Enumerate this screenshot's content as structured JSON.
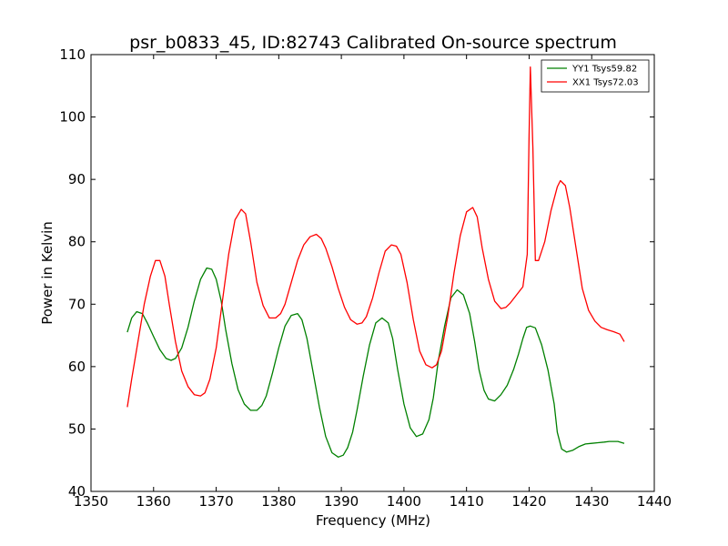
{
  "chart_data": {
    "type": "line",
    "title": "psr_b0833_45, ID:82743 Calibrated On-source spectrum",
    "xlabel": "Frequency (MHz)",
    "ylabel": "Power in Kelvin",
    "xlim": [
      1350,
      1440
    ],
    "ylim": [
      40,
      110
    ],
    "xticks": [
      1350,
      1360,
      1370,
      1380,
      1390,
      1400,
      1410,
      1420,
      1430,
      1440
    ],
    "yticks": [
      40,
      50,
      60,
      70,
      80,
      90,
      100,
      110
    ],
    "grid": false,
    "legend_position": "top-right",
    "series": [
      {
        "name": "YY1 Tsys59.82",
        "color": "#008000",
        "x": [
          1355.8,
          1356.5,
          1357.3,
          1358.2,
          1359.0,
          1360.0,
          1361.0,
          1362.0,
          1362.8,
          1363.5,
          1364.5,
          1365.5,
          1366.5,
          1367.5,
          1368.5,
          1369.3,
          1370.0,
          1370.8,
          1371.5,
          1372.5,
          1373.5,
          1374.5,
          1375.5,
          1376.5,
          1377.3,
          1378.0,
          1379.0,
          1380.0,
          1381.0,
          1382.0,
          1383.0,
          1383.7,
          1384.5,
          1385.5,
          1386.5,
          1387.5,
          1388.5,
          1389.5,
          1390.3,
          1391.0,
          1391.8,
          1392.5,
          1393.5,
          1394.5,
          1395.5,
          1396.5,
          1397.5,
          1398.2,
          1399.0,
          1400.0,
          1401.0,
          1402.0,
          1403.0,
          1404.0,
          1404.7,
          1405.5,
          1406.5,
          1407.5,
          1408.5,
          1409.5,
          1410.5,
          1411.3,
          1412.0,
          1412.8,
          1413.5,
          1414.5,
          1415.5,
          1416.5,
          1417.5,
          1418.3,
          1419.0,
          1419.6,
          1420.2,
          1421.0,
          1422.0,
          1423.0,
          1424.0,
          1424.5,
          1425.2,
          1426.0,
          1427.0,
          1428.0,
          1429.0,
          1430.0,
          1431.0,
          1432.0,
          1432.8,
          1433.5,
          1434.2,
          1435.2
        ],
        "y": [
          65.5,
          67.8,
          68.8,
          68.5,
          67.0,
          64.8,
          62.7,
          61.3,
          61.0,
          61.3,
          63.0,
          66.3,
          70.5,
          74.0,
          75.8,
          75.6,
          74.0,
          70.5,
          66.0,
          60.5,
          56.3,
          54.0,
          53.0,
          53.0,
          53.8,
          55.3,
          59.0,
          63.0,
          66.5,
          68.2,
          68.5,
          67.5,
          64.5,
          59.0,
          53.5,
          48.8,
          46.2,
          45.5,
          45.8,
          47.0,
          49.5,
          53.0,
          58.5,
          63.5,
          67.0,
          67.8,
          67.0,
          64.5,
          59.5,
          54.0,
          50.2,
          48.8,
          49.2,
          51.5,
          55.0,
          61.0,
          66.5,
          71.0,
          72.3,
          71.5,
          68.5,
          64.0,
          59.5,
          56.2,
          54.8,
          54.5,
          55.5,
          57.0,
          59.5,
          62.0,
          64.5,
          66.3,
          66.5,
          66.2,
          63.5,
          59.5,
          54.0,
          49.5,
          46.8,
          46.3,
          46.6,
          47.2,
          47.6,
          47.7,
          47.8,
          47.9,
          48.0,
          48.0,
          48.0,
          47.7
        ]
      },
      {
        "name": "XX1 Tsys72.03",
        "color": "#ff0000",
        "x": [
          1355.8,
          1356.5,
          1357.5,
          1358.5,
          1359.5,
          1360.3,
          1361.0,
          1361.8,
          1362.5,
          1363.5,
          1364.5,
          1365.5,
          1366.5,
          1367.5,
          1368.2,
          1369.0,
          1370.0,
          1371.0,
          1372.0,
          1373.0,
          1374.0,
          1374.7,
          1375.5,
          1376.5,
          1377.5,
          1378.5,
          1379.5,
          1380.3,
          1381.0,
          1382.0,
          1383.0,
          1384.0,
          1385.0,
          1386.0,
          1386.8,
          1387.5,
          1388.5,
          1389.5,
          1390.5,
          1391.5,
          1392.5,
          1393.3,
          1394.0,
          1395.0,
          1396.0,
          1397.0,
          1398.0,
          1398.8,
          1399.5,
          1400.5,
          1401.5,
          1402.5,
          1403.5,
          1404.5,
          1405.2,
          1406.0,
          1407.0,
          1408.0,
          1409.0,
          1410.0,
          1411.0,
          1411.7,
          1412.5,
          1413.5,
          1414.5,
          1415.5,
          1416.3,
          1417.0,
          1418.0,
          1419.0,
          1419.7,
          1420.0,
          1420.2,
          1420.6,
          1421.0,
          1421.5,
          1422.5,
          1423.5,
          1424.5,
          1425.0,
          1425.8,
          1426.5,
          1427.5,
          1428.5,
          1429.5,
          1430.5,
          1431.5,
          1432.5,
          1433.5,
          1434.5,
          1435.2
        ],
        "y": [
          53.5,
          58.0,
          64.0,
          70.0,
          74.5,
          77.0,
          77.0,
          74.5,
          70.0,
          64.0,
          59.3,
          56.8,
          55.5,
          55.3,
          55.8,
          58.0,
          63.0,
          70.5,
          78.0,
          83.5,
          85.2,
          84.5,
          80.0,
          73.5,
          69.8,
          67.8,
          67.8,
          68.5,
          70.0,
          73.5,
          77.0,
          79.5,
          80.8,
          81.2,
          80.5,
          79.0,
          76.0,
          72.5,
          69.5,
          67.5,
          66.8,
          67.0,
          68.0,
          71.0,
          75.0,
          78.5,
          79.5,
          79.3,
          78.0,
          73.5,
          67.5,
          62.5,
          60.3,
          59.8,
          60.3,
          62.5,
          68.0,
          75.0,
          81.0,
          84.8,
          85.5,
          84.0,
          79.0,
          74.0,
          70.5,
          69.3,
          69.5,
          70.2,
          71.5,
          72.8,
          78.0,
          97.0,
          108.0,
          95.0,
          77.0,
          77.0,
          80.0,
          85.0,
          88.8,
          89.8,
          89.0,
          85.5,
          79.0,
          72.5,
          69.0,
          67.3,
          66.3,
          65.9,
          65.6,
          65.2,
          64.0
        ]
      }
    ]
  }
}
